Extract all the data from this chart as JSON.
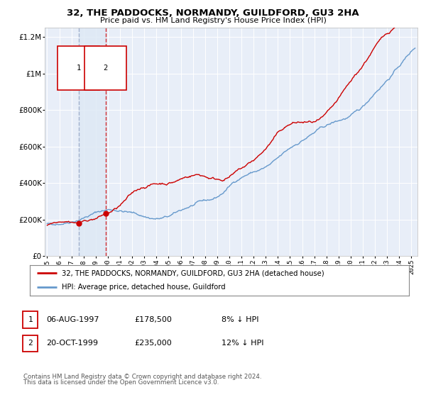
{
  "title": "32, THE PADDOCKS, NORMANDY, GUILDFORD, GU3 2HA",
  "subtitle": "Price paid vs. HM Land Registry's House Price Index (HPI)",
  "legend_line1": "32, THE PADDOCKS, NORMANDY, GUILDFORD, GU3 2HA (detached house)",
  "legend_line2": "HPI: Average price, detached house, Guildford",
  "transaction1_date": "06-AUG-1997",
  "transaction1_price": 178500,
  "transaction1_label": "8% ↓ HPI",
  "transaction1_year": 1997.58,
  "transaction2_date": "20-OCT-1999",
  "transaction2_price": 235000,
  "transaction2_label": "12% ↓ HPI",
  "transaction2_year": 1999.8,
  "footnote1": "Contains HM Land Registry data © Crown copyright and database right 2024.",
  "footnote2": "This data is licensed under the Open Government Licence v3.0.",
  "red_color": "#cc0000",
  "blue_color": "#6699cc",
  "vline1_color": "#8899bb",
  "vline2_color": "#cc0000",
  "shade_color": "#dde8f5",
  "plot_bg": "#e8eef8",
  "ylim": [
    0,
    1250000
  ],
  "xlim_start": 1994.8,
  "xlim_end": 2025.5,
  "seed": 42
}
